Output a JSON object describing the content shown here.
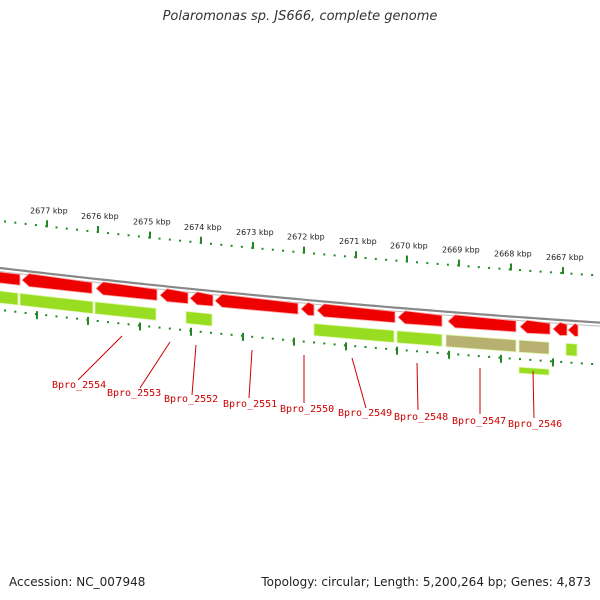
{
  "title": "Polaromonas sp. JS666, complete genome",
  "footer": {
    "accession": "Accession: NC_007948",
    "summary": "Topology: circular; Length: 5,200,264 bp; Genes: 4,873"
  },
  "colors": {
    "forward_gene": "#ee0000",
    "reverse_gene": "#99dd22",
    "reverse_gene_alt": "#b8b070",
    "backbone": "#888888",
    "tick": "#228822",
    "label": "#cc0000"
  },
  "scale_ticks": [
    {
      "label": "2677 kbp"
    },
    {
      "label": "2676 kbp"
    },
    {
      "label": "2675 kbp"
    },
    {
      "label": "2674 kbp"
    },
    {
      "label": "2673 kbp"
    },
    {
      "label": "2672 kbp"
    },
    {
      "label": "2671 kbp"
    },
    {
      "label": "2670 kbp"
    },
    {
      "label": "2669 kbp"
    },
    {
      "label": "2668 kbp"
    },
    {
      "label": "2667 kbp"
    }
  ],
  "gene_labels": [
    {
      "text": "Bpro_2554"
    },
    {
      "text": "Bpro_2553"
    },
    {
      "text": "Bpro_2552"
    },
    {
      "text": "Bpro_2551"
    },
    {
      "text": "Bpro_2550"
    },
    {
      "text": "Bpro_2549"
    },
    {
      "text": "Bpro_2548"
    },
    {
      "text": "Bpro_2547"
    },
    {
      "text": "Bpro_2546"
    }
  ]
}
